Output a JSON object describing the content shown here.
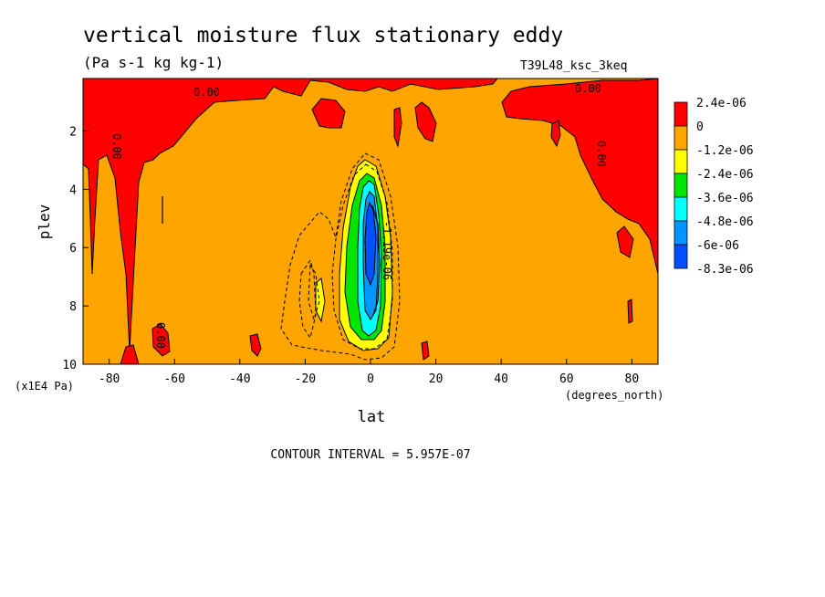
{
  "title": "vertical moisture flux stationary eddy",
  "units": "(Pa s-1 kg kg-1)",
  "dataset": "T39L48_ksc_3keq",
  "contour_interval_text": "CONTOUR INTERVAL = 5.957E-07",
  "colors": {
    "red": "#ff0000",
    "orange": "#ffa500",
    "yellow": "#ffff00",
    "green": "#00e600",
    "cyan": "#00ffff",
    "lightblue": "#0096ff",
    "blue": "#0050ff"
  },
  "chart_data": {
    "type": "heatmap",
    "title": "vertical moisture flux stationary eddy",
    "subtitle": "(Pa s-1 kg kg-1)",
    "xlabel": "lat",
    "xunits": "(degrees_north)",
    "ylabel": "plev",
    "yunits": "(x1E4 Pa)",
    "xlim": [
      -88,
      88
    ],
    "ylim": [
      10,
      0.2
    ],
    "xticks": [
      -80,
      -60,
      -40,
      -20,
      0,
      20,
      40,
      60,
      80
    ],
    "yticks": [
      2,
      4,
      6,
      8,
      10
    ],
    "legend": {
      "placement": "right",
      "levels": [
        "2.4e-06",
        "0",
        "-1.2e-06",
        "-2.4e-06",
        "-3.6e-06",
        "-4.8e-06",
        "-6e-06",
        "-8.3e-06"
      ],
      "colors": [
        "#ff0000",
        "#ffa500",
        "#ffff00",
        "#00e600",
        "#00ffff",
        "#0096ff",
        "#0050ff"
      ]
    },
    "contour_labels": [
      {
        "text": "0.00",
        "lat": -50,
        "plev": 0.5
      },
      {
        "text": "0.00",
        "lat": 67,
        "plev": 0.45
      },
      {
        "text": "0.00",
        "lat": -77,
        "plev": 2.6
      },
      {
        "text": "0.00",
        "lat": -63,
        "plev": 9.0
      },
      {
        "text": "0.00",
        "lat": 72,
        "plev": 3.0
      },
      {
        "text": "-1.19e-06",
        "lat": 3,
        "plev": 6.5
      }
    ],
    "regions": [
      {
        "value": "positive",
        "color": "#ff0000",
        "lat_range": [
          -88,
          -60
        ],
        "plev_range": [
          0.2,
          3.3
        ]
      },
      {
        "value": "positive",
        "color": "#ff0000",
        "lat_range": [
          45,
          88
        ],
        "plev_range": [
          0.2,
          4.5
        ]
      },
      {
        "value": "min",
        "color": "#0050ff",
        "lat_range": [
          -1,
          2
        ],
        "plev_range": [
          4.1,
          6.5
        ]
      }
    ]
  }
}
